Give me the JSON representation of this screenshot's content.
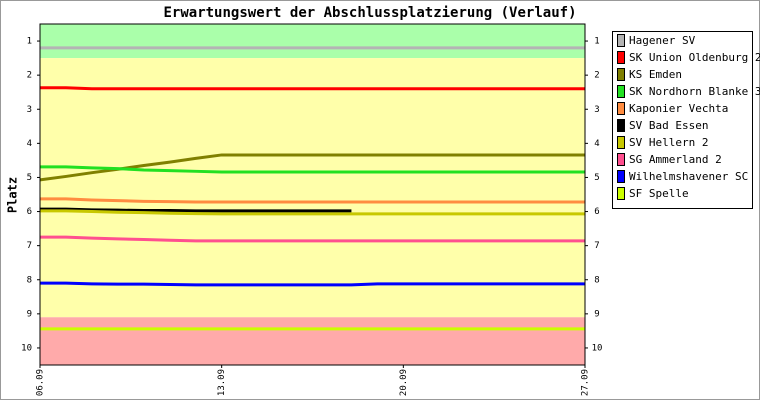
{
  "chart_data": {
    "type": "line",
    "title": "Erwartungswert der Abschlussplatzierung (Verlauf)",
    "y_label": "Platz",
    "categories": [
      "06.09",
      null,
      null,
      null,
      null,
      null,
      null,
      "13.09",
      null,
      null,
      null,
      null,
      null,
      null,
      "20.09",
      null,
      null,
      null,
      null,
      null,
      null,
      "27.09"
    ],
    "ylim": [
      0.5,
      10.5
    ],
    "y_reversed": true,
    "yticks": [
      1,
      2,
      3,
      4,
      5,
      6,
      7,
      8,
      9,
      10
    ],
    "bands": [
      {
        "from": 0.5,
        "to": 1.5,
        "color": "#aaffaa"
      },
      {
        "from": 1.5,
        "to": 9.1,
        "color": "#ffffaa"
      },
      {
        "from": 9.1,
        "to": 10.5,
        "color": "#ffaaaa"
      }
    ],
    "legend": "right",
    "series": [
      {
        "name": "Hagener SV",
        "color": "#b4b4b4",
        "values": [
          1.2,
          1.2,
          1.2,
          1.2,
          1.2,
          1.2,
          1.2,
          1.2,
          1.2,
          1.2,
          1.2,
          1.2,
          1.2,
          1.2,
          1.2,
          1.2,
          1.2,
          1.2,
          1.2,
          1.2,
          1.2,
          1.2
        ]
      },
      {
        "name": "SK Union Oldenburg 2",
        "color": "#ff0000",
        "values": [
          2.37,
          2.37,
          2.4,
          2.4,
          2.4,
          2.4,
          2.4,
          2.4,
          2.4,
          2.4,
          2.4,
          2.4,
          2.4,
          2.4,
          2.4,
          2.4,
          2.4,
          2.4,
          2.4,
          2.4,
          2.4,
          2.4
        ]
      },
      {
        "name": "KS Emden",
        "color": "#808000",
        "values": [
          5.07,
          4.97,
          4.86,
          4.76,
          4.65,
          4.55,
          4.44,
          4.34,
          4.34,
          4.34,
          4.34,
          4.34,
          4.34,
          4.34,
          4.34,
          4.34,
          4.34,
          4.34,
          4.34,
          4.34,
          4.34,
          4.34
        ]
      },
      {
        "name": "SK Nordhorn Blanke 3",
        "color": "#22e022",
        "values": [
          4.69,
          4.69,
          4.72,
          4.74,
          4.78,
          4.8,
          4.82,
          4.84,
          4.84,
          4.84,
          4.84,
          4.84,
          4.84,
          4.84,
          4.84,
          4.84,
          4.84,
          4.84,
          4.84,
          4.84,
          4.84,
          4.84
        ]
      },
      {
        "name": "Kaponier Vechta",
        "color": "#ff8c40",
        "values": [
          5.63,
          5.63,
          5.66,
          5.68,
          5.7,
          5.71,
          5.72,
          5.72,
          5.72,
          5.72,
          5.72,
          5.72,
          5.72,
          5.72,
          5.72,
          5.72,
          5.72,
          5.72,
          5.72,
          5.72,
          5.72,
          5.72
        ]
      },
      {
        "name": "SV Bad Essen",
        "color": "#000000",
        "values": [
          5.93,
          5.93,
          5.95,
          5.96,
          5.97,
          5.97,
          5.98,
          5.98,
          5.98,
          5.98,
          5.98,
          5.98,
          5.98,
          null,
          null,
          null,
          null,
          null,
          null,
          null,
          null,
          null
        ]
      },
      {
        "name": "SV Hellern 2",
        "color": "#c8c800",
        "values": [
          5.98,
          5.98,
          6.0,
          6.02,
          6.03,
          6.05,
          6.06,
          6.07,
          6.07,
          6.07,
          6.07,
          6.07,
          6.07,
          6.07,
          6.07,
          6.07,
          6.07,
          6.07,
          6.07,
          6.07,
          6.07,
          6.07
        ]
      },
      {
        "name": "SG Ammerland 2",
        "color": "#ff4f8f",
        "values": [
          6.75,
          6.75,
          6.78,
          6.8,
          6.82,
          6.84,
          6.86,
          6.86,
          6.86,
          6.86,
          6.86,
          6.86,
          6.86,
          6.86,
          6.86,
          6.86,
          6.86,
          6.86,
          6.86,
          6.86,
          6.86,
          6.86
        ]
      },
      {
        "name": "Wilhelmshavener SC",
        "color": "#0000ff",
        "values": [
          8.1,
          8.1,
          8.12,
          8.13,
          8.13,
          8.14,
          8.15,
          8.15,
          8.15,
          8.15,
          8.15,
          8.15,
          8.15,
          8.12,
          8.12,
          8.12,
          8.12,
          8.12,
          8.12,
          8.12,
          8.12,
          8.12
        ]
      },
      {
        "name": "SF Spelle",
        "color": "#ccff00",
        "values": [
          9.44,
          9.44,
          9.44,
          9.44,
          9.44,
          9.44,
          9.44,
          9.44,
          9.44,
          9.44,
          9.44,
          9.44,
          9.44,
          9.44,
          9.44,
          9.44,
          9.44,
          9.44,
          9.44,
          9.44,
          9.44,
          9.44
        ]
      }
    ]
  }
}
